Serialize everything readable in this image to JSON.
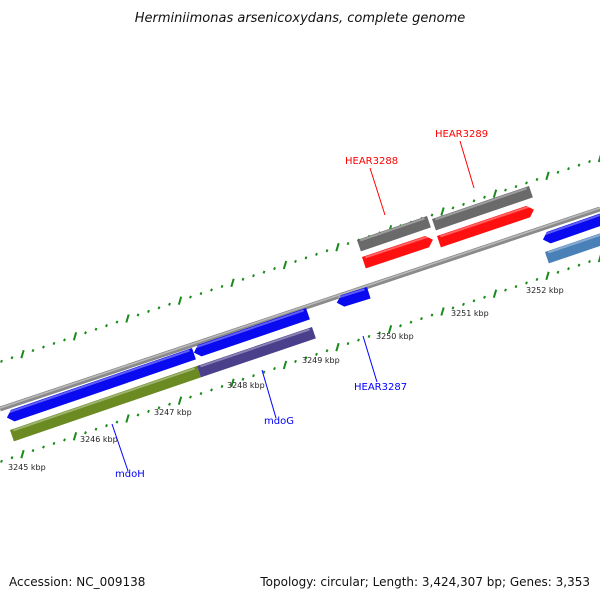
{
  "title": "Herminiimonas arsenicoxydans, complete genome",
  "footer": {
    "accession": "Accession: NC_009138",
    "summary": "Topology: circular; Length: 3,424,307 bp; Genes: 3,353"
  },
  "ticks": [
    "3245 kbp",
    "3246 kbp",
    "3247 kbp",
    "3248 kbp",
    "3249 kbp",
    "3250 kbp",
    "3251 kbp",
    "3252 kbp"
  ],
  "genes": [
    {
      "name": "mdoH",
      "color": "#0000ff"
    },
    {
      "name": "mdoG",
      "color": "#0000ff"
    },
    {
      "name": "HEAR3287",
      "color": "#0000ff"
    },
    {
      "name": "HEAR3288",
      "color": "#ff0000"
    },
    {
      "name": "HEAR3289",
      "color": "#ff0000"
    }
  ],
  "colors": {
    "backbone": "#8a8a8a",
    "gene_blue": "#0a0af0",
    "cds_red": "#ff1010",
    "gray_feature": "#6a6a6a",
    "olive": "#6b8a22",
    "purple": "#4a3f8a",
    "steel": "#4a80b8",
    "ticks": "#1a8a1a"
  }
}
